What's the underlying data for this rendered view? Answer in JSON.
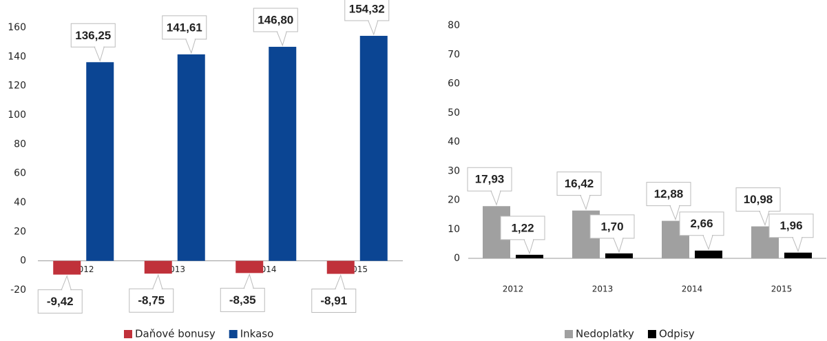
{
  "chart_data": [
    {
      "type": "bar",
      "categories": [
        "2012",
        "2013",
        "2014",
        "2015"
      ],
      "series": [
        {
          "name": "Daňové bonusy",
          "color": "#c0313a",
          "values": [
            -9.42,
            -8.75,
            -8.35,
            -8.91
          ],
          "value_labels": [
            "-9,42",
            "-8,75",
            "-8,35",
            "-8,91"
          ]
        },
        {
          "name": "Inkaso",
          "color": "#0b4593",
          "values": [
            136.25,
            141.61,
            146.8,
            154.32
          ],
          "value_labels": [
            "136,25",
            "141,61",
            "146,80",
            "154,32"
          ]
        }
      ],
      "ylim": [
        -20,
        160
      ],
      "yticks": [
        -20,
        0,
        20,
        40,
        60,
        80,
        100,
        120,
        140,
        160
      ],
      "legend": "bottom"
    },
    {
      "type": "bar",
      "categories": [
        "2012",
        "2013",
        "2014",
        "2015"
      ],
      "series": [
        {
          "name": "Nedoplatky",
          "color": "#a0a0a0",
          "values": [
            17.93,
            16.42,
            12.88,
            10.98
          ],
          "value_labels": [
            "17,93",
            "16,42",
            "12,88",
            "10,98"
          ]
        },
        {
          "name": "Odpisy",
          "color": "#000000",
          "values": [
            1.22,
            1.7,
            2.66,
            1.96
          ],
          "value_labels": [
            "1,22",
            "1,70",
            "2,66",
            "1,96"
          ]
        }
      ],
      "ylim": [
        0,
        80
      ],
      "yticks": [
        0,
        10,
        20,
        30,
        40,
        50,
        60,
        70,
        80
      ],
      "legend": "bottom"
    }
  ]
}
